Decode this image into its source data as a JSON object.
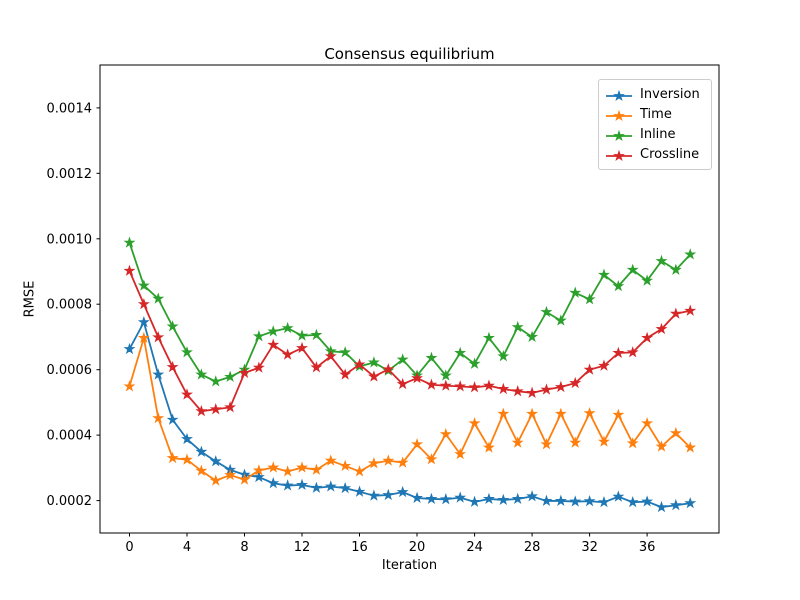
{
  "chart_data": {
    "type": "line",
    "title": "Consensus equilibrium",
    "xlabel": "Iteration",
    "ylabel": "RMSE",
    "grid": false,
    "legend_position": "upper right",
    "marker": "star",
    "xlim": [
      -2.05,
      41.0
    ],
    "ylim": [
      0.000101,
      0.001531
    ],
    "xticks": [
      0,
      4,
      8,
      12,
      16,
      20,
      24,
      28,
      32,
      36
    ],
    "ytick_values": [
      0.0002,
      0.0004,
      0.0006,
      0.0008,
      0.001,
      0.0012,
      0.0014
    ],
    "ytick_labels": [
      "0.0002",
      "0.0004",
      "0.0006",
      "0.0008",
      "0.0010",
      "0.0012",
      "0.0014"
    ],
    "x": [
      0,
      1,
      2,
      3,
      4,
      5,
      6,
      7,
      8,
      9,
      10,
      11,
      12,
      13,
      14,
      15,
      16,
      17,
      18,
      19,
      20,
      21,
      22,
      23,
      24,
      25,
      26,
      27,
      28,
      29,
      30,
      31,
      32,
      33,
      34,
      35,
      36,
      37,
      38,
      39
    ],
    "series": [
      {
        "name": "Inversion",
        "color": "#1f77b4",
        "marker": "star",
        "values": [
          0.000663,
          0.000745,
          0.000585,
          0.000447,
          0.000388,
          0.000349,
          0.00032,
          0.000294,
          0.000279,
          0.000272,
          0.000253,
          0.000246,
          0.000248,
          0.000239,
          0.000243,
          0.000238,
          0.000227,
          0.000215,
          0.000217,
          0.000226,
          0.000208,
          0.000205,
          0.000204,
          0.000209,
          0.000196,
          0.000205,
          0.000202,
          0.000205,
          0.000213,
          0.000199,
          0.000199,
          0.000197,
          0.000198,
          0.000195,
          0.000212,
          0.000195,
          0.000197,
          0.00018,
          0.000186,
          0.000192
        ]
      },
      {
        "name": "Time",
        "color": "#ff7f0e",
        "marker": "star",
        "values": [
          0.000549,
          0.000697,
          0.000452,
          0.00033,
          0.000325,
          0.000291,
          0.000261,
          0.000278,
          0.000264,
          0.000292,
          0.000301,
          0.000289,
          0.000301,
          0.000294,
          0.000322,
          0.000306,
          0.000289,
          0.000314,
          0.000322,
          0.000316,
          0.000372,
          0.000326,
          0.000403,
          0.000342,
          0.000436,
          0.000362,
          0.000465,
          0.000377,
          0.000465,
          0.000372,
          0.000465,
          0.000377,
          0.000467,
          0.00038,
          0.000462,
          0.000375,
          0.000436,
          0.000365,
          0.000406,
          0.000362
        ]
      },
      {
        "name": "Inline",
        "color": "#2ca02c",
        "marker": "star",
        "values": [
          0.000988,
          0.000857,
          0.000817,
          0.000732,
          0.000653,
          0.000585,
          0.000564,
          0.000578,
          0.0006,
          0.000702,
          0.000717,
          0.000727,
          0.000704,
          0.000706,
          0.000656,
          0.000653,
          0.00061,
          0.000622,
          0.000597,
          0.000631,
          0.000582,
          0.000636,
          0.000582,
          0.000651,
          0.000618,
          0.000697,
          0.000641,
          0.00073,
          0.0007,
          0.000776,
          0.00075,
          0.000835,
          0.000815,
          0.00089,
          0.000855,
          0.000905,
          0.000872,
          0.000932,
          0.000905,
          0.000952
        ]
      },
      {
        "name": "Crossline",
        "color": "#d62728",
        "marker": "star",
        "values": [
          0.000902,
          0.0008,
          0.000699,
          0.000608,
          0.000524,
          0.000473,
          0.000479,
          0.000485,
          0.00059,
          0.000606,
          0.000676,
          0.000646,
          0.000666,
          0.000607,
          0.000641,
          0.000585,
          0.000616,
          0.000579,
          0.000601,
          0.000556,
          0.000574,
          0.000554,
          0.000551,
          0.000549,
          0.000546,
          0.000551,
          0.000541,
          0.000534,
          0.000529,
          0.000539,
          0.000547,
          0.000559,
          0.0006,
          0.000612,
          0.000651,
          0.000653,
          0.000697,
          0.000724,
          0.000771,
          0.00078
        ]
      }
    ]
  }
}
